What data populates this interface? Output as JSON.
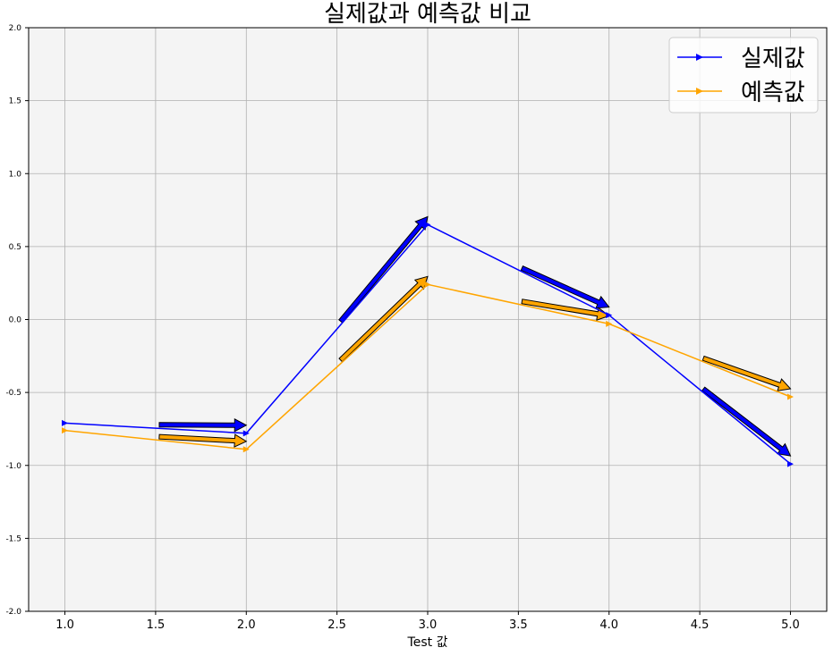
{
  "chart_data": {
    "type": "line",
    "title": "실제값과 예측값 비교",
    "xlabel": "Test 값",
    "ylabel": "",
    "xlim": [
      0.8,
      5.2
    ],
    "ylim": [
      -2.0,
      2.0
    ],
    "x_ticks": [
      "1.0",
      "1.5",
      "2.0",
      "2.5",
      "3.0",
      "3.5",
      "4.0",
      "4.5",
      "5.0"
    ],
    "y_ticks": [
      "2.0",
      "1.5",
      "1.0",
      "0.5",
      "0.0",
      "-0.5",
      "-1.0",
      "-1.5",
      "-2.0"
    ],
    "grid": true,
    "legend_position": "top-right",
    "x": [
      1,
      2,
      3,
      4,
      5
    ],
    "series": [
      {
        "name": "실제값",
        "color": "#0000ff",
        "marker": "triangle-right",
        "values": [
          -0.71,
          -0.78,
          0.65,
          0.03,
          -0.99
        ]
      },
      {
        "name": "예측값",
        "color": "#ffa500",
        "marker": "triangle-right",
        "values": [
          -0.76,
          -0.89,
          0.24,
          -0.03,
          -0.53
        ]
      }
    ]
  }
}
